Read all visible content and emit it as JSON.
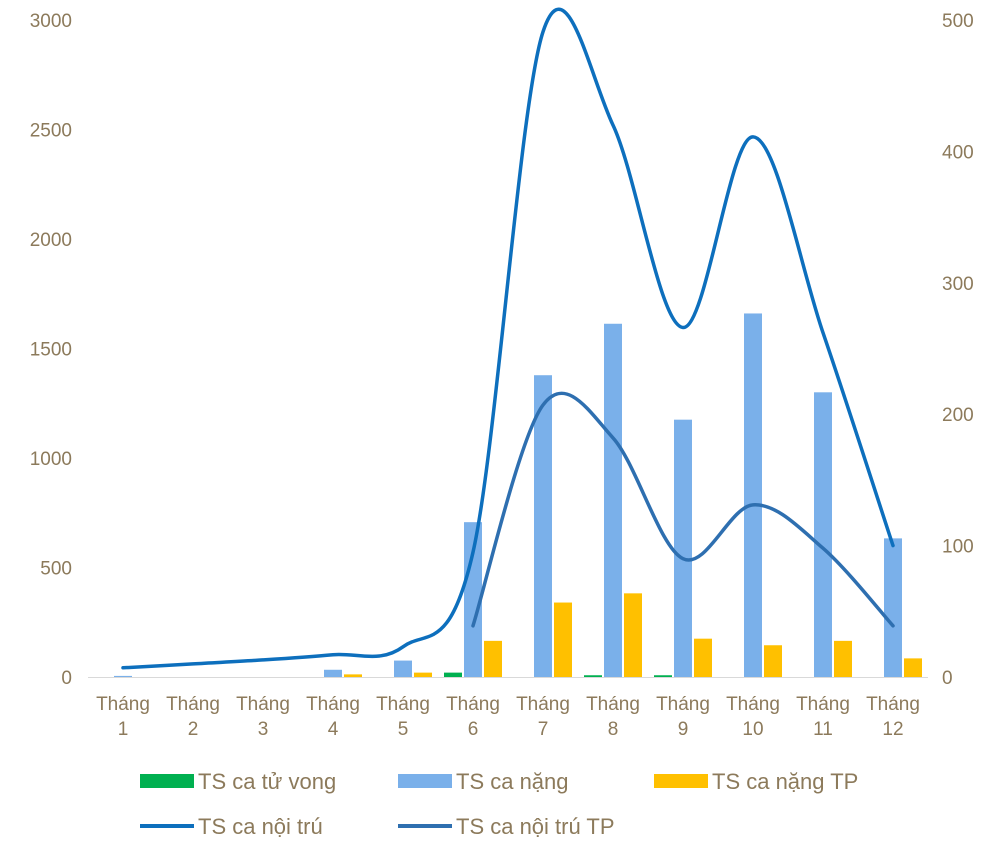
{
  "chart_data": {
    "type": "bar",
    "categories": [
      [
        "Tháng",
        "1"
      ],
      [
        "Tháng",
        "2"
      ],
      [
        "Tháng",
        "3"
      ],
      [
        "Tháng",
        "4"
      ],
      [
        "Tháng",
        "5"
      ],
      [
        "Tháng",
        "6"
      ],
      [
        "Tháng",
        "7"
      ],
      [
        "Tháng",
        "8"
      ],
      [
        "Tháng",
        "9"
      ],
      [
        "Tháng",
        "10"
      ],
      [
        "Tháng",
        "11"
      ],
      [
        "Tháng",
        "12"
      ]
    ],
    "y_left": {
      "min": 0,
      "max": 3000,
      "ticks": [
        0,
        500,
        1000,
        1500,
        2000,
        2500,
        3000
      ]
    },
    "y_right": {
      "min": 0,
      "max": 500,
      "ticks": [
        0,
        100,
        200,
        300,
        400,
        500
      ]
    },
    "bar_series": [
      {
        "name": "TS ca tử vong",
        "color": "#00b050",
        "axis": "left",
        "values": [
          0,
          0,
          0,
          0,
          0,
          20,
          0,
          8,
          8,
          0,
          0,
          0
        ]
      },
      {
        "name": "TS ca nặng",
        "color": "#7ab0ea",
        "axis": "left",
        "values": [
          5,
          0,
          0,
          33,
          75,
          707,
          1378,
          1613,
          1175,
          1660,
          1300,
          633
        ]
      },
      {
        "name": "TS ca nặng TP",
        "color": "#ffc000",
        "axis": "left",
        "values": [
          0,
          0,
          0,
          12,
          20,
          165,
          340,
          382,
          175,
          145,
          165,
          85
        ]
      }
    ],
    "line_series": [
      {
        "name": "TS ca nội trú",
        "color": "#0d6fbd",
        "axis": "right",
        "values": [
          7,
          10,
          13,
          17,
          23,
          95,
          491,
          420,
          266,
          411,
          262,
          100
        ]
      },
      {
        "name": "TS ca nội trú TP",
        "color": "#2e6fb0",
        "axis": "right",
        "values": [
          null,
          null,
          null,
          null,
          null,
          39,
          207,
          182,
          90,
          131,
          98,
          39
        ]
      }
    ],
    "legend": [
      {
        "name": "TS ca tử vong",
        "kind": "bar",
        "color": "#00b050"
      },
      {
        "name": "TS ca nặng",
        "kind": "bar",
        "color": "#7ab0ea"
      },
      {
        "name": "TS ca nặng TP",
        "kind": "bar",
        "color": "#ffc000"
      },
      {
        "name": "TS ca nội trú",
        "kind": "line",
        "color": "#0d6fbd"
      },
      {
        "name": "TS ca nội trú TP",
        "kind": "line",
        "color": "#2e6fb0"
      }
    ],
    "legend_position": "bottom",
    "grid": false
  }
}
